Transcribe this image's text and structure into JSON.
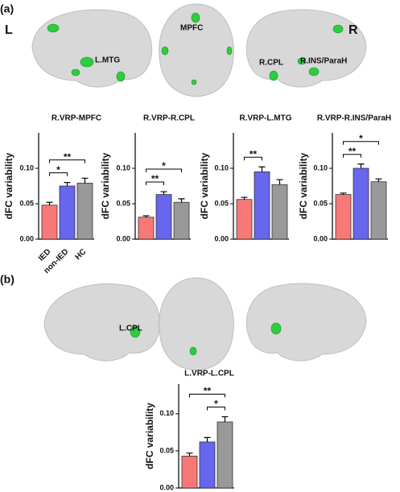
{
  "panel_labels": [
    "(a)",
    "(b)"
  ],
  "brain_labels": {
    "a": [
      "L",
      "L.MTG",
      "MPFC",
      "R",
      "R.CPL",
      "R.INS/ParaH"
    ],
    "b": [
      "L.CPL"
    ]
  },
  "chart_data": [
    {
      "type": "bar",
      "title": "R.VRP-MPFC",
      "ylabel": "dFC variability",
      "categories": [
        "IED",
        "non-IED",
        "HC"
      ],
      "values": [
        0.048,
        0.075,
        0.079
      ],
      "errors": [
        0.004,
        0.005,
        0.007
      ],
      "colors": [
        "#f87878",
        "#6666ee",
        "#999999"
      ],
      "ylim": [
        0,
        0.15
      ],
      "yticks": [
        {
          "value": 0,
          "label": "0.00"
        },
        {
          "value": 0.05,
          "label": "0.05"
        },
        {
          "value": 0.1,
          "label": "0.10"
        }
      ],
      "annotations": [
        {
          "label": "*",
          "pair": [
            0,
            1
          ]
        },
        {
          "label": "**",
          "pair": [
            0,
            2
          ]
        }
      ]
    },
    {
      "type": "bar",
      "title": "R.VRP-R.CPL",
      "ylabel": "dFC variability",
      "categories": [
        null,
        null,
        null
      ],
      "values": [
        0.031,
        0.063,
        0.052
      ],
      "errors": [
        0.002,
        0.004,
        0.005
      ],
      "colors": [
        "#f87878",
        "#6666ee",
        "#999999"
      ],
      "ylim": [
        0,
        0.15
      ],
      "yticks": [
        {
          "value": 0,
          "label": "0.00"
        },
        {
          "value": 0.05,
          "label": "0.05"
        },
        {
          "value": 0.1,
          "label": "0.10"
        }
      ],
      "annotations": [
        {
          "label": "**",
          "pair": [
            0,
            1
          ]
        },
        {
          "label": "*",
          "pair": [
            0,
            2
          ]
        }
      ]
    },
    {
      "type": "bar",
      "title": "R.VRP-L.MTG",
      "ylabel": "dFC variability",
      "categories": [
        null,
        null,
        null
      ],
      "values": [
        0.056,
        0.095,
        0.077
      ],
      "errors": [
        0.003,
        0.007,
        0.007
      ],
      "colors": [
        "#f87878",
        "#6666ee",
        "#999999"
      ],
      "ylim": [
        0,
        0.15
      ],
      "yticks": [
        {
          "value": 0,
          "label": "0.00"
        },
        {
          "value": 0.05,
          "label": "0.05"
        },
        {
          "value": 0.1,
          "label": "0.10"
        }
      ],
      "annotations": [
        {
          "label": "**",
          "pair": [
            0,
            1
          ]
        }
      ]
    },
    {
      "type": "bar",
      "title": "R.VRP-R.INS/ParaH",
      "ylabel": "dFC variability",
      "categories": [
        null,
        null,
        null
      ],
      "values": [
        0.063,
        0.1,
        0.081
      ],
      "errors": [
        0.002,
        0.006,
        0.004
      ],
      "colors": [
        "#f87878",
        "#6666ee",
        "#999999"
      ],
      "ylim": [
        0,
        0.15
      ],
      "yticks": [
        {
          "value": 0,
          "label": "0.00"
        },
        {
          "value": 0.05,
          "label": "0.05"
        },
        {
          "value": 0.1,
          "label": "0.10"
        }
      ],
      "annotations": [
        {
          "label": "**",
          "pair": [
            0,
            1
          ]
        },
        {
          "label": "*",
          "pair": [
            0,
            2
          ]
        }
      ]
    },
    {
      "type": "bar",
      "title": "L.VRP-L.CPL",
      "ylabel": "dFC variability",
      "categories": [
        null,
        null,
        null
      ],
      "values": [
        0.043,
        0.062,
        0.089
      ],
      "errors": [
        0.004,
        0.006,
        0.007
      ],
      "colors": [
        "#f87878",
        "#6666ee",
        "#999999"
      ],
      "ylim": [
        0,
        0.14
      ],
      "yticks": [
        {
          "value": 0,
          "label": "0.00"
        },
        {
          "value": 0.05,
          "label": "0.05"
        },
        {
          "value": 0.1,
          "label": "0.10"
        }
      ],
      "annotations": [
        {
          "label": "*",
          "pair": [
            1,
            2
          ]
        },
        {
          "label": "**",
          "pair": [
            0,
            2
          ]
        }
      ]
    }
  ]
}
